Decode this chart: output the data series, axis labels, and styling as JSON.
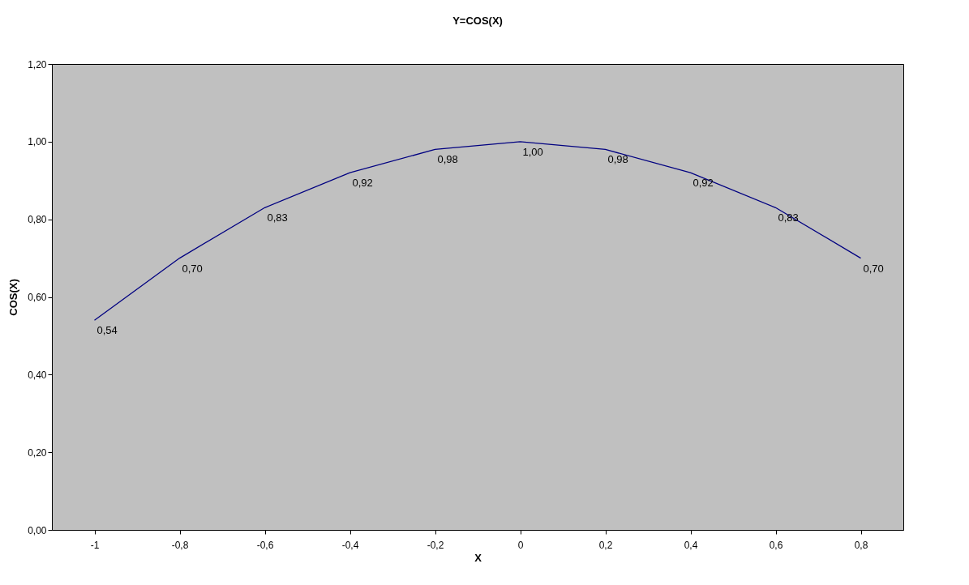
{
  "chart_data": {
    "type": "line",
    "title": "Y=COS(X)",
    "xlabel": "X",
    "ylabel": "COS(X)",
    "categories": [
      "-1",
      "-0,8",
      "-0,6",
      "-0,4",
      "-0,2",
      "0",
      "0,2",
      "0,4",
      "0,6",
      "0,8"
    ],
    "series": [
      {
        "color": "#000080",
        "values": [
          0.54,
          0.7,
          0.83,
          0.92,
          0.98,
          1.0,
          0.98,
          0.92,
          0.83,
          0.7
        ]
      }
    ],
    "value_labels": [
      "0,54",
      "0,70",
      "0,83",
      "0,92",
      "0,98",
      "1,00",
      "0,98",
      "0,92",
      "0,83",
      "0,70"
    ],
    "ylim": [
      0,
      1.2
    ],
    "yticks": [
      {
        "value": 0,
        "label": "0,00"
      },
      {
        "value": 0.2,
        "label": "0,20"
      },
      {
        "value": 0.4,
        "label": "0,40"
      },
      {
        "value": 0.6,
        "label": "0,60"
      },
      {
        "value": 0.8,
        "label": "0,80"
      },
      {
        "value": 1,
        "label": "1,00"
      },
      {
        "value": 1.2,
        "label": "1,20"
      }
    ],
    "grid": false,
    "marker": "none",
    "line_style": "solid"
  }
}
